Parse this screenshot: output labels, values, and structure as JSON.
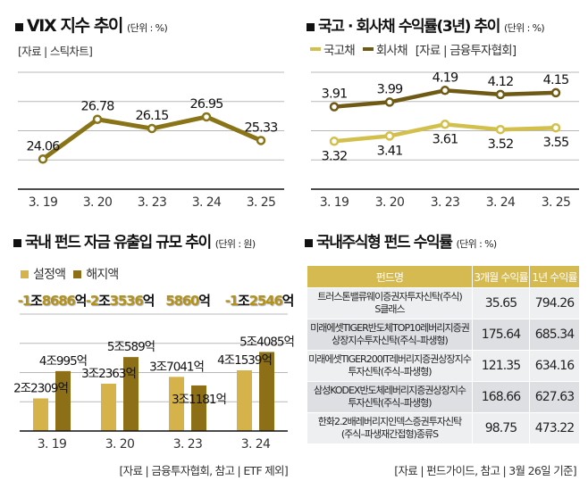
{
  "chart_data": [
    {
      "type": "line",
      "title": "VIX 지수 추이",
      "unit": "(단위 : %)",
      "source": "[자료 | 스틱차트]",
      "categories": [
        "3. 19",
        "3. 20",
        "3. 23",
        "3. 24",
        "3. 25"
      ],
      "series": [
        {
          "name": "VIX",
          "values": [
            24.06,
            26.78,
            26.15,
            26.95,
            25.33
          ],
          "color": "#8a7418"
        }
      ],
      "xlabel": "",
      "ylabel": "",
      "ylim": [
        22,
        30
      ],
      "y_grid_step": 2,
      "grid": true,
      "legend": "none"
    },
    {
      "type": "line",
      "title": "국고 · 회사채 수익률(3년) 추이",
      "unit": "(단위 : %)",
      "source": "[자료 | 금융투자협회]",
      "categories": [
        "3. 19",
        "3. 20",
        "3. 23",
        "3. 24",
        "3. 25"
      ],
      "series": [
        {
          "name": "국고채",
          "values": [
            3.32,
            3.41,
            3.61,
            3.52,
            3.55
          ],
          "color": "#d2bf4c"
        },
        {
          "name": "회사채",
          "values": [
            3.91,
            3.99,
            4.19,
            4.12,
            4.15
          ],
          "color": "#6e5a14"
        }
      ],
      "xlabel": "",
      "ylabel": "",
      "ylim": [
        2.5,
        4.5
      ],
      "y_grid_step": 0.5,
      "grid": true,
      "legend": "top-left"
    },
    {
      "type": "bar",
      "title": "국내 펀드 자금 유출입 규모 추이",
      "unit": "(단위 : 원)",
      "source": "[자료 | 금융투자협회, 참고 | ETF 제외]",
      "categories": [
        "3. 19",
        "3. 20",
        "3. 23",
        "3. 24"
      ],
      "value_unit": "억원",
      "series": [
        {
          "name": "설정액",
          "values": [
            22309,
            32363,
            37041,
            41539
          ],
          "labels": [
            "2조2309억",
            "3조2363억",
            "3조7041억",
            "4조1539억"
          ],
          "color": "#d6b24a"
        },
        {
          "name": "해지액",
          "values": [
            40995,
            50589,
            31181,
            54085
          ],
          "labels": [
            "4조995억",
            "5조589억",
            "3조1181억",
            "5조4085억"
          ],
          "color": "#8c6f17"
        }
      ],
      "net": {
        "values": [
          -18686,
          -23536,
          5860,
          -12546
        ],
        "labels": [
          "-1조8686억",
          "-2조3536억",
          "5860억",
          "-1조2546억"
        ]
      },
      "xlabel": "",
      "ylabel": "",
      "ylim": [
        0,
        80000
      ],
      "y_grid_step": 20000,
      "grid": true,
      "legend": "top-left"
    },
    {
      "type": "table",
      "title": "국내주식형 펀드 수익률",
      "unit": "(단위 : %)",
      "source": "[자료 | 펀드가이드, 참고 | 3월 26일 기준]",
      "columns": [
        "펀드명",
        "3개월 수익률",
        "1년 수익률"
      ],
      "rows": [
        {
          "name_lines": [
            "트러스톤밸류웨이증권자투자신탁(주식)",
            "S클래스"
          ],
          "return_3m": "35.65",
          "return_1y": "794.26"
        },
        {
          "name_lines": [
            "미래에셋TIGER반도체TOP10레버리지증권",
            "상장지수투자신탁(주식–파생형)"
          ],
          "return_3m": "175.64",
          "return_1y": "685.34"
        },
        {
          "name_lines": [
            "미래에셋TIGER200IT레버리지증권상장지수",
            "투자신탁(주식–파생형)"
          ],
          "return_3m": "121.35",
          "return_1y": "634.16"
        },
        {
          "name_lines": [
            "삼성KODEX반도체레버리지증권상장지수",
            "투자신탁(주식–파생형)"
          ],
          "return_3m": "168.66",
          "return_1y": "627.63"
        },
        {
          "name_lines": [
            "한화2.2배레버리지인덱스증권투자신탁",
            "(주식–파생재간접형)종류S"
          ],
          "return_3m": "98.75",
          "return_1y": "473.22"
        }
      ]
    }
  ]
}
